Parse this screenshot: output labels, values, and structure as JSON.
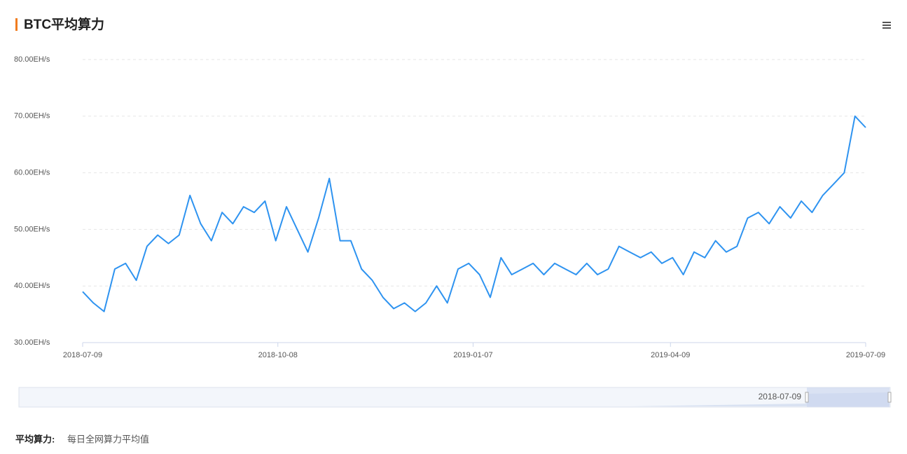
{
  "chart_data": {
    "type": "line",
    "title": "BTC平均算力",
    "color": "#2e93f0",
    "x": [
      "2018-07-09",
      "2018-07-14",
      "2018-07-19",
      "2018-07-24",
      "2018-07-29",
      "2018-08-03",
      "2018-08-08",
      "2018-08-13",
      "2018-08-18",
      "2018-08-23",
      "2018-08-28",
      "2018-09-02",
      "2018-09-07",
      "2018-09-12",
      "2018-09-17",
      "2018-09-22",
      "2018-09-27",
      "2018-10-02",
      "2018-10-07",
      "2018-10-12",
      "2018-10-17",
      "2018-10-22",
      "2018-10-27",
      "2018-11-01",
      "2018-11-06",
      "2018-11-11",
      "2018-11-16",
      "2018-11-21",
      "2018-11-26",
      "2018-12-01",
      "2018-12-06",
      "2018-12-11",
      "2018-12-16",
      "2018-12-21",
      "2018-12-26",
      "2018-12-31",
      "2019-01-05",
      "2019-01-10",
      "2019-01-15",
      "2019-01-20",
      "2019-01-25",
      "2019-01-30",
      "2019-02-04",
      "2019-02-09",
      "2019-02-14",
      "2019-02-19",
      "2019-02-24",
      "2019-03-01",
      "2019-03-06",
      "2019-03-11",
      "2019-03-16",
      "2019-03-21",
      "2019-03-26",
      "2019-03-31",
      "2019-04-05",
      "2019-04-10",
      "2019-04-15",
      "2019-04-20",
      "2019-04-25",
      "2019-04-30",
      "2019-05-05",
      "2019-05-10",
      "2019-05-15",
      "2019-05-20",
      "2019-05-25",
      "2019-05-30",
      "2019-06-04",
      "2019-06-09",
      "2019-06-14",
      "2019-06-19",
      "2019-06-24",
      "2019-06-29",
      "2019-07-04",
      "2019-07-09"
    ],
    "values": [
      39,
      37,
      35.5,
      43,
      44,
      41,
      47,
      49,
      47.5,
      49,
      56,
      51,
      48,
      53,
      51,
      54,
      53,
      55,
      48,
      54,
      50,
      46,
      52,
      59,
      48,
      48,
      43,
      41,
      38,
      36,
      37,
      35.5,
      37,
      40,
      37,
      43,
      44,
      42,
      38,
      45,
      42,
      43,
      44,
      42,
      44,
      43,
      42,
      44,
      42,
      43,
      47,
      46,
      45,
      46,
      44,
      45,
      42,
      46,
      45,
      48,
      46,
      47,
      52,
      53,
      51,
      54,
      52,
      55,
      53,
      56,
      58,
      60,
      70,
      68
    ],
    "xlim": [
      "2018-07-09",
      "2019-07-09"
    ],
    "xticks": [
      "2018-07-09",
      "2018-10-08",
      "2019-01-07",
      "2019-04-09",
      "2019-07-09"
    ],
    "ylim": [
      30,
      80
    ],
    "yticks": [
      {
        "value": 30,
        "label": "30.00EH/s"
      },
      {
        "value": 40,
        "label": "40.00EH/s"
      },
      {
        "value": 50,
        "label": "50.00EH/s"
      },
      {
        "value": 60,
        "label": "60.00EH/s"
      },
      {
        "value": 70,
        "label": "70.00EH/s"
      },
      {
        "value": 80,
        "label": "80.00EH/s"
      }
    ],
    "grid": true,
    "slider_label": "2018-07-09"
  },
  "footnote": {
    "term": "平均算力:",
    "text": "每日全网算力平均值"
  }
}
